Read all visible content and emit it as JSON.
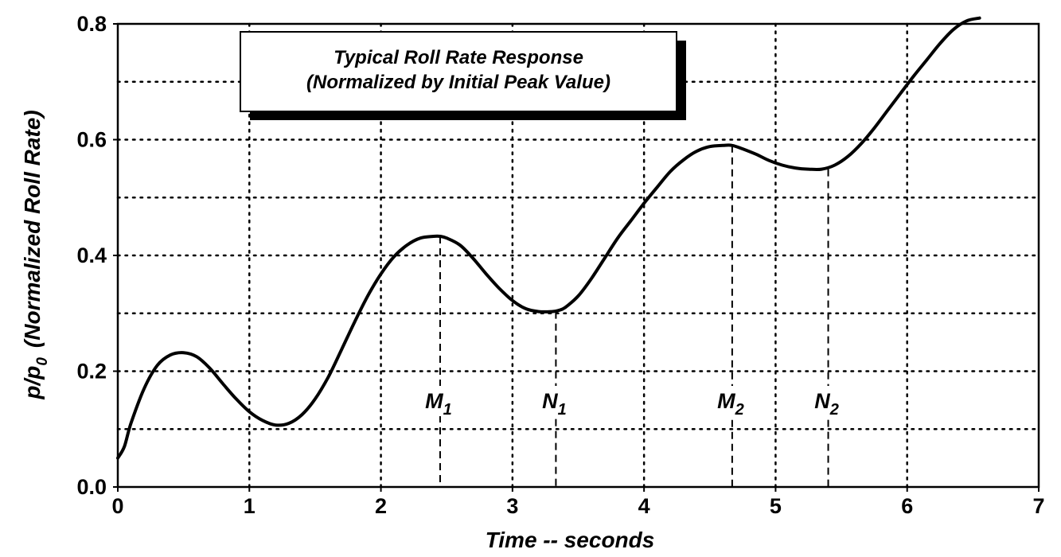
{
  "chart_data": {
    "type": "line",
    "title": "Typical Roll Rate Response",
    "subtitle": "(Normalized by Initial Peak Value)",
    "xlabel": "Time -- seconds",
    "ylabel": "p/p",
    "ylabel_subscript": "0",
    "ylabel_suffix": "(Normalized Roll Rate)",
    "xlim": [
      0,
      7
    ],
    "ylim": [
      0,
      0.8
    ],
    "x_ticks": [
      0,
      1,
      2,
      3,
      4,
      5,
      6,
      7
    ],
    "x_tick_labels": [
      "0",
      "1",
      "2",
      "3",
      "4",
      "5",
      "6",
      "7"
    ],
    "y_ticks": [
      0.0,
      0.2,
      0.4,
      0.6,
      0.8
    ],
    "y_tick_labels": [
      "0.0",
      "0.2",
      "0.4",
      "0.6",
      "0.8"
    ],
    "grid": true,
    "grid_style": "dotted",
    "x_grid": [
      1,
      2,
      3,
      4,
      5,
      6
    ],
    "y_grid": [
      0.1,
      0.2,
      0.3,
      0.4,
      0.5,
      0.6,
      0.7
    ],
    "series": [
      {
        "x": [
          0,
          0.05,
          0.1,
          0.2,
          0.3,
          0.4,
          0.5,
          0.6,
          0.7,
          0.8,
          0.9,
          1.0,
          1.1,
          1.2,
          1.3,
          1.4,
          1.5,
          1.6,
          1.7,
          1.8,
          1.9,
          2.0,
          2.1,
          2.2,
          2.3,
          2.4,
          2.45,
          2.5,
          2.6,
          2.7,
          2.8,
          2.9,
          3.0,
          3.1,
          3.2,
          3.3,
          3.35,
          3.4,
          3.5,
          3.6,
          3.7,
          3.8,
          3.9,
          4.0,
          4.1,
          4.2,
          4.3,
          4.4,
          4.5,
          4.6,
          4.67,
          4.75,
          4.85,
          4.95,
          5.05,
          5.15,
          5.25,
          5.35,
          5.45,
          5.55,
          5.65,
          5.75,
          5.85,
          5.95,
          6.05,
          6.15,
          6.25,
          6.35,
          6.45,
          6.55
        ],
        "y": [
          0.05,
          0.07,
          0.11,
          0.17,
          0.21,
          0.228,
          0.232,
          0.225,
          0.205,
          0.178,
          0.152,
          0.13,
          0.115,
          0.107,
          0.11,
          0.125,
          0.152,
          0.19,
          0.237,
          0.285,
          0.33,
          0.368,
          0.398,
          0.418,
          0.43,
          0.433,
          0.433,
          0.43,
          0.418,
          0.395,
          0.368,
          0.343,
          0.322,
          0.308,
          0.303,
          0.303,
          0.305,
          0.31,
          0.33,
          0.36,
          0.395,
          0.43,
          0.46,
          0.49,
          0.518,
          0.545,
          0.565,
          0.58,
          0.588,
          0.59,
          0.59,
          0.584,
          0.575,
          0.564,
          0.556,
          0.551,
          0.549,
          0.549,
          0.556,
          0.571,
          0.593,
          0.62,
          0.65,
          0.68,
          0.71,
          0.738,
          0.766,
          0.79,
          0.805,
          0.81
        ]
      }
    ],
    "annotations": [
      {
        "label": "M",
        "sub": "1",
        "x": 2.45,
        "y": 0.433
      },
      {
        "label": "N",
        "sub": "1",
        "x": 3.33,
        "y": 0.303
      },
      {
        "label": "M",
        "sub": "2",
        "x": 4.67,
        "y": 0.59
      },
      {
        "label": "N",
        "sub": "2",
        "x": 5.4,
        "y": 0.549
      }
    ],
    "colors": {
      "line": "#000000",
      "grid": "#000000",
      "background": "#ffffff",
      "box_shadow": "#000000"
    }
  }
}
